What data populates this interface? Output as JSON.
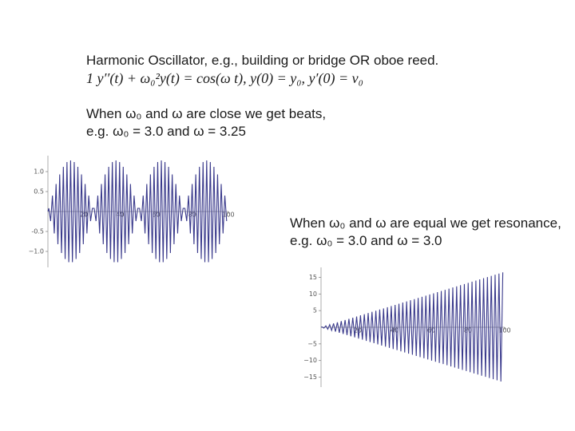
{
  "slide": {
    "title": "Harmonic Oscillator, e.g., building or bridge OR oboe reed.",
    "equation": "1 y′′(t) +  ω₀²y(t) = cos(ω t),    y(0) = y₀,   y′(0) =  v₀",
    "beats_text": [
      "When ω₀ and ω are close we get beats,",
      "e.g. ω₀ = 3.0 and ω = 3.25"
    ],
    "resonance_text": [
      "When ω₀ and ω are equal we get resonance,",
      "e.g. ω₀ = 3.0 and ω = 3.0"
    ]
  },
  "chart_data": [
    {
      "type": "line",
      "color": "#3a3a8c",
      "xlim": [
        0,
        100
      ],
      "xticks": [
        20,
        40,
        60,
        80,
        100
      ],
      "ylim": [
        -1.4,
        1.4
      ],
      "yticks": [
        {
          "value": 1,
          "label": "1.0"
        },
        0.5,
        -0.5,
        {
          "value": -1,
          "label": "−1.0"
        }
      ],
      "x": [
        0,
        0.5,
        1.51,
        2.51,
        3.52,
        4.52,
        5.53,
        6.53,
        7.54,
        8.55,
        9.55,
        10.56,
        11.56,
        12.57,
        13.57,
        14.58,
        15.58,
        16.59,
        17.59,
        18.6,
        19.6,
        20.61,
        21.62,
        22.62,
        23.63,
        24.63,
        25.63,
        26.64,
        27.64,
        28.65,
        29.65,
        30.66,
        31.67,
        32.67,
        33.68,
        34.68,
        35.69,
        36.69,
        37.7,
        38.7,
        39.71,
        40.71,
        41.72,
        42.73,
        43.73,
        44.74,
        45.74,
        46.75,
        47.75,
        48.76,
        49.76,
        50.77,
        51.78,
        52.78,
        53.79,
        54.79,
        55.8,
        56.8,
        57.81,
        58.81,
        59.82,
        60.83,
        61.83,
        62.84,
        63.84,
        64.85,
        65.85,
        66.86,
        67.86,
        68.87,
        69.87,
        70.88,
        71.88,
        72.89,
        73.9,
        74.9,
        75.9,
        76.91,
        77.91,
        78.92,
        79.92,
        80.93,
        81.93,
        82.94,
        83.95,
        84.95,
        85.96,
        86.96,
        87.97,
        88.97,
        89.98,
        90.98,
        91.99,
        92.99,
        94.0,
        95.0,
        96.01,
        97.02,
        98.02,
        99.03
      ],
      "values": [
        0,
        0.08,
        -0.24,
        0.4,
        -0.55,
        0.69,
        -0.82,
        0.93,
        -1.04,
        1.12,
        -1.19,
        1.24,
        -1.27,
        1.28,
        -1.27,
        1.24,
        -1.19,
        1.12,
        -1.04,
        0.93,
        -0.82,
        0.69,
        -0.55,
        0.4,
        -0.24,
        0.08,
        0.08,
        -0.24,
        0.4,
        -0.55,
        0.69,
        -0.82,
        0.93,
        -1.04,
        1.12,
        -1.19,
        1.24,
        -1.27,
        1.28,
        -1.27,
        1.24,
        -1.19,
        1.12,
        -1.04,
        0.93,
        -0.82,
        0.69,
        -0.55,
        0.4,
        -0.24,
        0.08,
        0.08,
        -0.24,
        0.4,
        -0.55,
        0.69,
        -0.82,
        0.93,
        -1.04,
        1.12,
        -1.19,
        1.24,
        -1.27,
        1.28,
        -1.27,
        1.24,
        -1.19,
        1.12,
        -1.04,
        0.93,
        -0.82,
        0.69,
        -0.55,
        0.4,
        -0.24,
        0.08,
        0.08,
        -0.24,
        0.4,
        -0.55,
        0.69,
        -0.82,
        0.93,
        -1.04,
        1.12,
        -1.19,
        1.24,
        -1.27,
        1.28,
        -1.27,
        1.24,
        -1.19,
        1.12,
        -1.04,
        0.93,
        -0.82,
        0.69,
        -0.55,
        0.4,
        -0.24
      ]
    },
    {
      "type": "line",
      "color": "#3a3a8c",
      "xlim": [
        0,
        100
      ],
      "xticks": [
        20,
        40,
        60,
        80,
        100
      ],
      "ylim": [
        -18,
        18
      ],
      "yticks": [
        15,
        10,
        5,
        {
          "value": -5,
          "label": "−5"
        },
        {
          "value": -10,
          "label": "−10"
        },
        {
          "value": -15,
          "label": "−15"
        }
      ],
      "x": [
        0,
        0.52,
        1.57,
        2.62,
        3.67,
        4.71,
        5.76,
        6.81,
        7.85,
        8.9,
        9.95,
        11.0,
        12.04,
        13.09,
        14.14,
        15.18,
        16.23,
        17.28,
        18.33,
        19.37,
        20.42,
        21.47,
        22.51,
        23.56,
        24.61,
        25.66,
        26.7,
        27.75,
        28.8,
        29.85,
        30.89,
        31.94,
        32.99,
        34.03,
        35.08,
        36.13,
        37.18,
        38.22,
        39.27,
        40.32,
        41.36,
        42.41,
        43.46,
        44.51,
        45.55,
        46.6,
        47.65,
        48.69,
        49.74,
        50.79,
        51.84,
        52.88,
        53.93,
        54.98,
        56.03,
        57.07,
        58.12,
        59.17,
        60.21,
        61.26,
        62.31,
        63.36,
        64.4,
        65.45,
        66.5,
        67.54,
        68.59,
        69.64,
        70.69,
        71.73,
        72.78,
        73.83,
        74.87,
        75.92,
        76.97,
        78.02,
        79.06,
        80.11,
        81.16,
        82.2,
        83.25,
        84.3,
        85.35,
        86.39,
        87.44,
        88.49,
        89.54,
        90.58,
        91.63,
        92.68,
        93.72,
        94.77,
        95.82,
        96.87,
        97.91,
        98.96
      ],
      "values": [
        0,
        0.09,
        -0.26,
        0.44,
        -0.61,
        0.79,
        -0.96,
        1.13,
        -1.31,
        1.48,
        -1.66,
        1.83,
        -2.01,
        2.18,
        -2.36,
        2.53,
        -2.71,
        2.88,
        -3.05,
        3.23,
        -3.4,
        3.58,
        -3.75,
        3.93,
        -4.1,
        4.28,
        -4.45,
        4.63,
        -4.8,
        4.97,
        -5.15,
        5.32,
        -5.5,
        5.67,
        -5.85,
        6.02,
        -6.2,
        6.37,
        -6.55,
        6.72,
        -6.89,
        7.07,
        -7.24,
        7.42,
        -7.59,
        7.77,
        -7.94,
        8.12,
        -8.29,
        8.47,
        -8.64,
        8.81,
        -8.99,
        9.16,
        -9.34,
        9.51,
        -9.69,
        9.86,
        -10.04,
        10.21,
        -10.39,
        10.56,
        -10.73,
        10.91,
        -11.08,
        11.26,
        -11.43,
        11.61,
        -11.78,
        11.96,
        -12.13,
        12.31,
        -12.48,
        12.65,
        -12.83,
        13.0,
        -13.18,
        13.35,
        -13.53,
        13.7,
        -13.88,
        14.05,
        -14.23,
        14.4,
        -14.57,
        14.75,
        -14.92,
        15.1,
        -15.27,
        15.45,
        -15.62,
        15.8,
        -15.97,
        16.15,
        -16.32,
        16.49
      ]
    }
  ]
}
